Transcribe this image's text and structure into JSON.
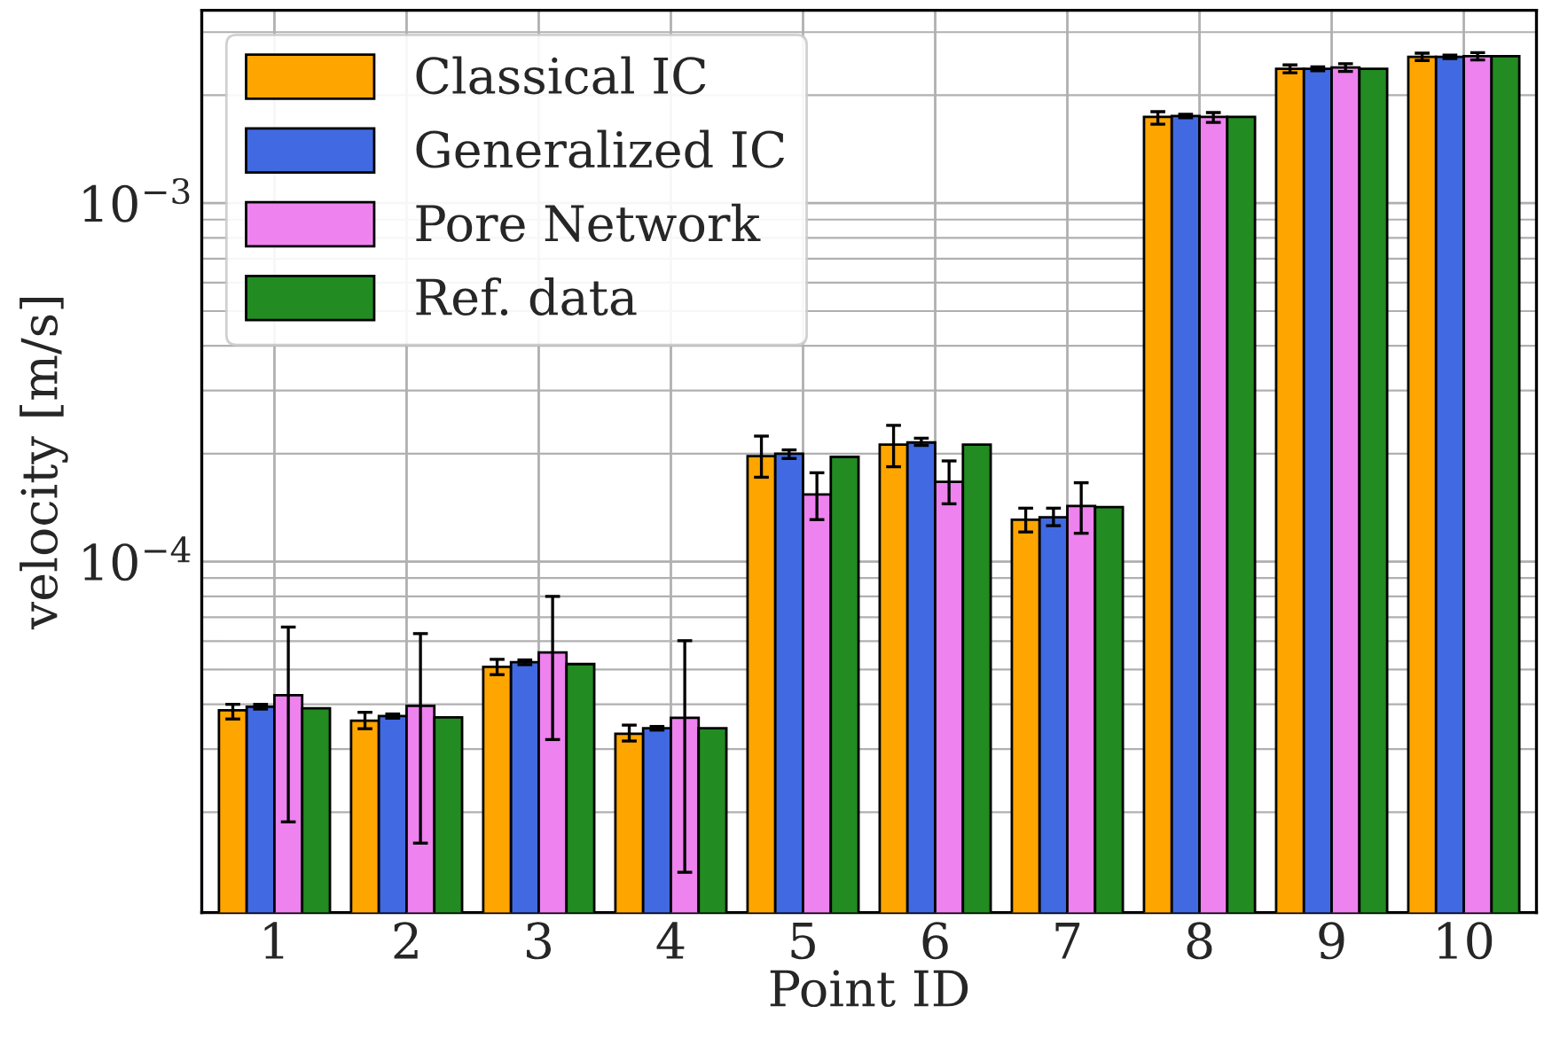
{
  "chart_data": {
    "type": "bar",
    "xlabel": "Point ID",
    "ylabel": "velocity [m/s]",
    "categories": [
      "1",
      "2",
      "3",
      "4",
      "5",
      "6",
      "7",
      "8",
      "9",
      "10"
    ],
    "series": [
      {
        "name": "Classical IC",
        "color": "#ffa500",
        "values": [
          3.85e-05,
          3.6e-05,
          5.09e-05,
          3.31e-05,
          0.000197,
          0.000212,
          0.000131,
          0.00174,
          0.00237,
          0.00256
        ],
        "errors": [
          [
            3.64e-05,
            4e-05
          ],
          [
            3.42e-05,
            3.8e-05
          ],
          [
            4.84e-05,
            5.34e-05
          ],
          [
            3.16e-05,
            3.5e-05
          ],
          [
            0.000172,
            0.000224
          ],
          [
            0.000184,
            0.00024
          ],
          [
            0.000121,
            0.000141
          ],
          [
            0.00166,
            0.0018
          ],
          [
            0.00231,
            0.00243
          ],
          [
            0.0025,
            0.00262
          ]
        ]
      },
      {
        "name": "Generalized IC",
        "color": "#4169e1",
        "values": [
          3.94e-05,
          3.71e-05,
          5.24e-05,
          3.43e-05,
          0.0002,
          0.000215,
          0.000133,
          0.00175,
          0.00237,
          0.00256
        ],
        "errors": [
          [
            3.88e-05,
            4e-05
          ],
          [
            3.66e-05,
            3.76e-05
          ],
          [
            5.16e-05,
            5.32e-05
          ],
          [
            3.39e-05,
            3.47e-05
          ],
          [
            0.000194,
            0.000205
          ],
          [
            0.000211,
            0.000221
          ],
          [
            0.000126,
            0.000141
          ],
          [
            0.00173,
            0.00177
          ],
          [
            0.00234,
            0.0024
          ],
          [
            0.00253,
            0.00259
          ]
        ]
      },
      {
        "name": "Pore Network",
        "color": "#ee82ee",
        "values": [
          4.24e-05,
          3.96e-05,
          5.58e-05,
          3.67e-05,
          0.000154,
          0.000167,
          0.000143,
          0.00174,
          0.00239,
          0.00257
        ],
        "errors": [
          [
            1.88e-05,
            6.57e-05
          ],
          [
            1.64e-05,
            6.3e-05
          ],
          [
            3.19e-05,
            8e-05
          ],
          [
            1.36e-05,
            6.02e-05
          ],
          [
            0.000131,
            0.000177
          ],
          [
            0.000145,
            0.000191
          ],
          [
            0.00012,
            0.000166
          ],
          [
            0.00168,
            0.00179
          ],
          [
            0.00233,
            0.00245
          ],
          [
            0.00251,
            0.00263
          ]
        ]
      },
      {
        "name": "Ref. data",
        "color": "#228b22",
        "values": [
          3.9e-05,
          3.68e-05,
          5.18e-05,
          3.43e-05,
          0.000196,
          0.000212,
          0.000142,
          0.00174,
          0.00237,
          0.00257
        ]
      }
    ],
    "log": true,
    "ylim": [
      1.05e-05,
      0.00345
    ],
    "yticks": [
      {
        "value": 0.0001,
        "label": "10$^{−4}$"
      },
      {
        "value": 0.001,
        "label": "10$^{−3}$"
      }
    ],
    "grid": true,
    "legend": "top left"
  }
}
